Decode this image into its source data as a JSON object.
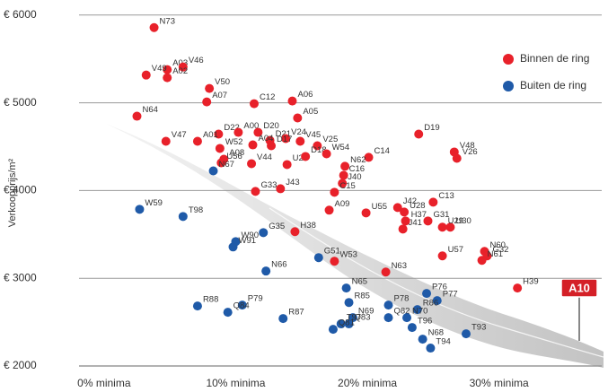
{
  "chart_data": {
    "type": "scatter",
    "y_axis_label": "Verkoopprijs/m²",
    "annotation": "A10",
    "xlim": [
      -1.9,
      37.8
    ],
    "ylim": [
      2000,
      6100
    ],
    "xticks": [
      {
        "value": 0,
        "label": "0% minima"
      },
      {
        "value": 10,
        "label": "10% minima"
      },
      {
        "value": 20,
        "label": "20% minima"
      },
      {
        "value": 30,
        "label": "30% minima"
      }
    ],
    "yticks": [
      {
        "value": 2000,
        "label": "€ 2000"
      },
      {
        "value": 3000,
        "label": "€ 3000"
      },
      {
        "value": 4000,
        "label": "€ 4000"
      },
      {
        "value": 5000,
        "label": "€ 5000"
      },
      {
        "value": 6000,
        "label": "€ 6000"
      }
    ],
    "grid": true,
    "legend": "top-right",
    "series": [
      {
        "name": "Binnen de ring",
        "color": "#e8212a",
        "labels": [
          "N73",
          "A03",
          "V46",
          "V49",
          "A02",
          "V50",
          "A07",
          "C12",
          "A06",
          "A05",
          "N64",
          "D22",
          "A00",
          "D20",
          "D21",
          "V24",
          "V45",
          "V47",
          "A01",
          "W52",
          "A04",
          "D17",
          "V25",
          "A08",
          "V44",
          "U27",
          "D18",
          "W54",
          "C14",
          "D19",
          "V48",
          "V26",
          "N62",
          "C16",
          "J40",
          "C15",
          "G33",
          "J43",
          "A09",
          "U55",
          "J42",
          "U28",
          "C13",
          "H37",
          "J41",
          "G31",
          "U30",
          "U29",
          "H38",
          "W53",
          "U57",
          "N60",
          "G32",
          "N61",
          "N63",
          "H39",
          "U56"
        ],
        "x": [
          3.8,
          4.8,
          6.0,
          3.2,
          4.8,
          8.0,
          7.8,
          11.4,
          14.3,
          14.7,
          2.5,
          8.7,
          10.2,
          11.7,
          12.6,
          13.8,
          14.9,
          4.7,
          7.1,
          8.8,
          11.3,
          12.7,
          16.2,
          9.1,
          11.2,
          13.9,
          15.3,
          16.9,
          20.1,
          23.9,
          26.6,
          26.8,
          18.3,
          18.2,
          18.1,
          17.5,
          11.5,
          13.4,
          17.1,
          19.9,
          22.3,
          22.8,
          25.0,
          22.9,
          22.7,
          24.6,
          26.3,
          25.7,
          14.5,
          17.5,
          25.7,
          28.9,
          29.1,
          28.7,
          21.4,
          31.4,
          8.9
        ],
        "y": [
          5857,
          5378,
          5408,
          5316,
          5286,
          5163,
          5010,
          4990,
          5020,
          4827,
          4847,
          4643,
          4663,
          4663,
          4571,
          4592,
          4561,
          4561,
          4561,
          4480,
          4520,
          4510,
          4510,
          4357,
          4306,
          4296,
          4388,
          4418,
          4378,
          4643,
          4439,
          4367,
          4276,
          4173,
          4082,
          3980,
          3990,
          4020,
          3776,
          3745,
          3806,
          3755,
          3867,
          3653,
          3561,
          3653,
          3582,
          3582,
          3531,
          3194,
          3255,
          3306,
          3255,
          3204,
          3071,
          2888,
          4316
        ]
      },
      {
        "name": "Buiten de ring",
        "color": "#1f5aa8",
        "labels": [
          "W59",
          "T98",
          "N67",
          "G35",
          "W90",
          "W91",
          "N66",
          "G51",
          "N65",
          "R85",
          "R88",
          "P79",
          "Q84",
          "R87",
          "P78",
          "P76",
          "P77",
          "R86",
          "N69",
          "T97",
          "Q82",
          "N70",
          "Q83",
          "Q81",
          "T96",
          "N68",
          "T93",
          "T94"
        ],
        "x": [
          2.7,
          6.0,
          8.3,
          12.1,
          10.0,
          9.8,
          12.3,
          16.3,
          18.4,
          18.6,
          7.1,
          10.5,
          9.4,
          13.6,
          21.6,
          24.5,
          25.3,
          23.8,
          18.9,
          18.0,
          21.6,
          23.0,
          18.6,
          17.4,
          23.4,
          24.2,
          27.5,
          24.8
        ],
        "y": [
          3786,
          3704,
          4224,
          3520,
          3418,
          3357,
          3082,
          3235,
          2888,
          2724,
          2684,
          2694,
          2612,
          2541,
          2694,
          2827,
          2745,
          2643,
          2551,
          2480,
          2551,
          2551,
          2480,
          2418,
          2439,
          2306,
          2367,
          2204
        ]
      }
    ]
  }
}
